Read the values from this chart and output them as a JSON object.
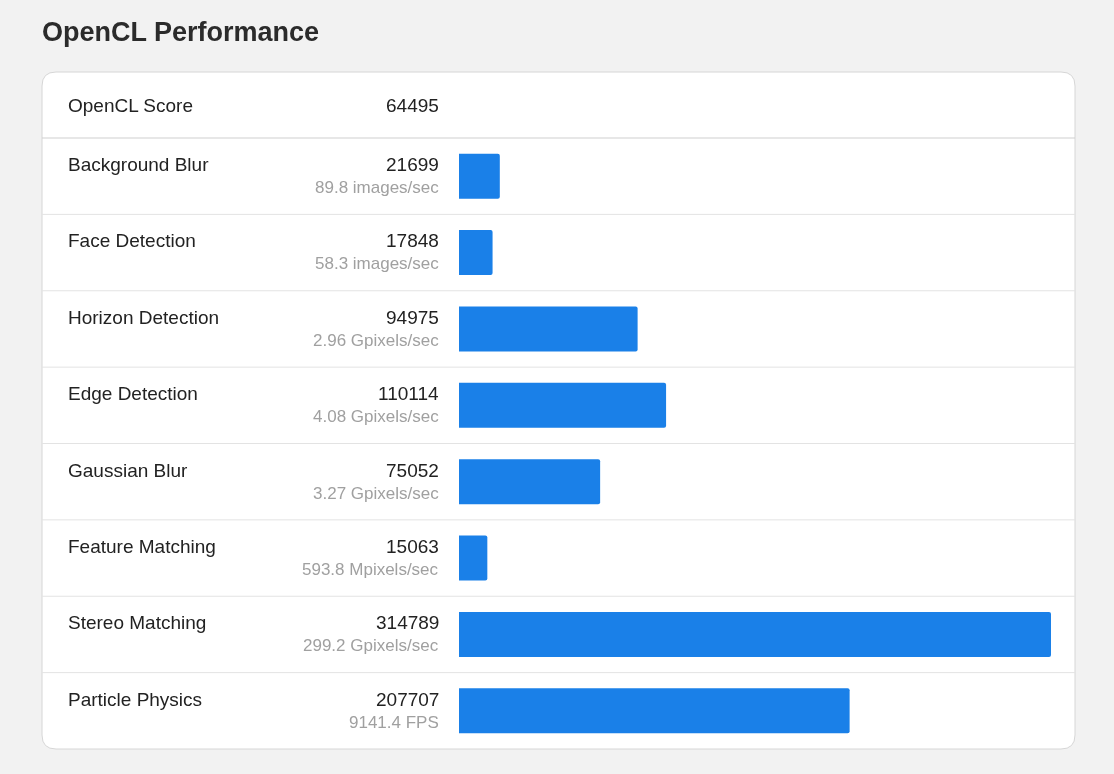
{
  "chart_data": {
    "type": "bar",
    "orientation": "horizontal",
    "title": "OpenCL Performance",
    "annotations": [
      "OpenCL Score",
      "64495",
      "89.8 images/sec",
      "58.3 images/sec",
      "2.96 Gpixels/sec",
      "4.08 Gpixels/sec",
      "3.27 Gpixels/sec",
      "593.8 Mpixels/sec",
      "299.2 Gpixels/sec",
      "9141.4 FPS"
    ],
    "categories": [
      "Background Blur",
      "Face Detection",
      "Horizon Detection",
      "Edge Detection",
      "Gaussian Blur",
      "Feature Matching",
      "Stereo Matching",
      "Particle Physics"
    ],
    "values": [
      21699,
      17848,
      94975,
      110114,
      75052,
      15063,
      314789,
      207707
    ],
    "data_labels": true,
    "color": "#1a80e8",
    "xlim": [
      0,
      314789
    ],
    "grid": false,
    "legend": false
  }
}
